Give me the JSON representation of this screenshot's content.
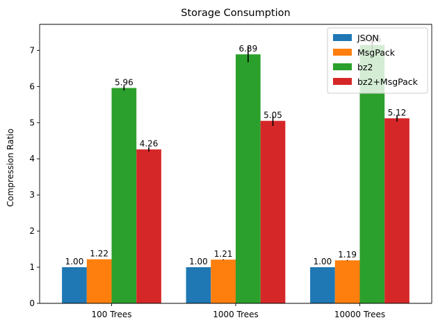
{
  "chart_data": {
    "type": "bar",
    "title": "Storage Consumption",
    "xlabel": "",
    "ylabel": "Compression Ratio",
    "ylim": [
      0,
      7.72
    ],
    "yticks": [
      0,
      1,
      2,
      3,
      4,
      5,
      6,
      7
    ],
    "categories": [
      "100 Trees",
      "1000 Trees",
      "10000 Trees"
    ],
    "series": [
      {
        "name": "JSON",
        "color": "#1f77b4",
        "values": [
          1.0,
          1.0,
          1.0
        ],
        "errors": [
          0,
          0,
          0
        ],
        "labels": [
          "1.00",
          "1.00",
          "1.00"
        ]
      },
      {
        "name": "MsgPack",
        "color": "#ff7f0e",
        "values": [
          1.22,
          1.21,
          1.19
        ],
        "errors": [
          0.0,
          0.01,
          0.01
        ],
        "labels": [
          "1.22",
          "1.21",
          "1.19"
        ]
      },
      {
        "name": "bz2",
        "color": "#2ca02c",
        "values": [
          5.96,
          6.89,
          7.15
        ],
        "errors": [
          0.07,
          0.22,
          0.22
        ],
        "labels": [
          "5.96",
          "6.89",
          "7.15"
        ]
      },
      {
        "name": "bz2+MsgPack",
        "color": "#d62728",
        "values": [
          4.26,
          5.05,
          5.12
        ],
        "errors": [
          0.06,
          0.14,
          0.09
        ],
        "labels": [
          "4.26",
          "5.05",
          "5.12"
        ]
      }
    ],
    "legend_position": "top-right"
  }
}
